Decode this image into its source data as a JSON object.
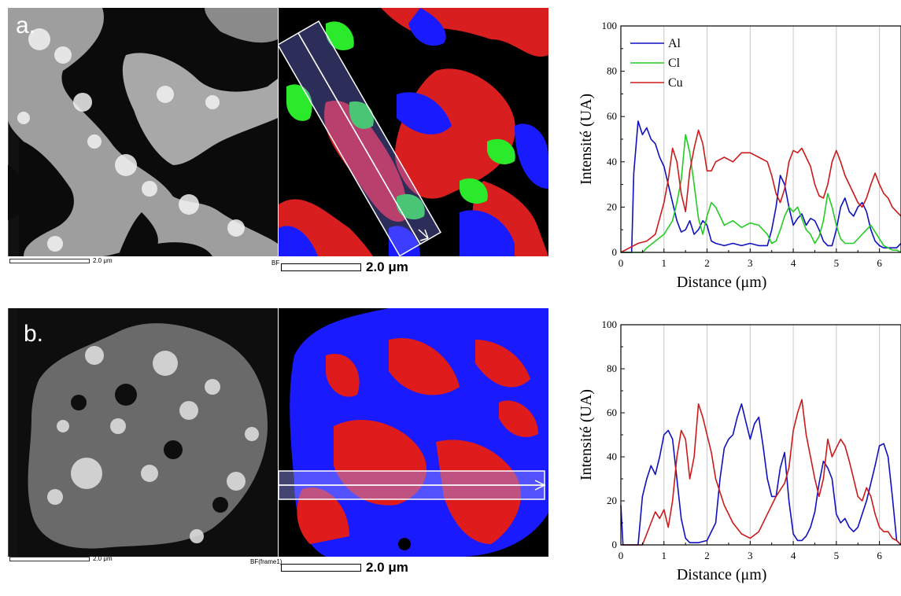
{
  "panels": [
    {
      "label": "a.",
      "left_scale_text": "2.0 μm",
      "left_mode": "BF",
      "map_scale_text": "2.0 μm"
    },
    {
      "label": "b.",
      "left_scale_text": "2.0 μm",
      "left_mode": "BF(frame1)",
      "map_scale_text": "2.0 μm"
    }
  ],
  "colors": {
    "Al": "#1010c0",
    "Cl": "#22cc22",
    "Cu": "#cc1a1a",
    "grid": "#c8c8c8"
  },
  "chart_data": [
    {
      "type": "line",
      "xlabel": "Distance (μm)",
      "ylabel": "Intensité (UA)",
      "xlim": [
        0,
        6.5
      ],
      "ylim": [
        0,
        100
      ],
      "xticks": [
        0,
        1,
        2,
        3,
        4,
        5,
        6
      ],
      "yticks": [
        0,
        20,
        40,
        60,
        80,
        100
      ],
      "grid": "vertical",
      "legend": "top-left",
      "series": [
        {
          "name": "Al",
          "color": "#1010c0",
          "x": [
            0,
            0.25,
            0.3,
            0.4,
            0.5,
            0.6,
            0.7,
            0.8,
            0.9,
            1.0,
            1.1,
            1.2,
            1.3,
            1.4,
            1.5,
            1.6,
            1.7,
            1.8,
            1.9,
            2.0,
            2.1,
            2.2,
            2.4,
            2.6,
            2.8,
            3.0,
            3.2,
            3.4,
            3.5,
            3.6,
            3.7,
            3.8,
            3.9,
            4.0,
            4.1,
            4.2,
            4.3,
            4.4,
            4.5,
            4.6,
            4.7,
            4.8,
            4.9,
            5.0,
            5.1,
            5.2,
            5.3,
            5.4,
            5.5,
            5.6,
            5.7,
            5.8,
            5.9,
            6.0,
            6.1,
            6.2,
            6.3,
            6.4,
            6.5
          ],
          "y": [
            0,
            0,
            35,
            58,
            52,
            55,
            50,
            48,
            42,
            38,
            30,
            22,
            14,
            9,
            10,
            14,
            8,
            10,
            14,
            12,
            5,
            4,
            3,
            4,
            3,
            4,
            3,
            3,
            10,
            20,
            34,
            30,
            20,
            12,
            15,
            17,
            12,
            15,
            14,
            10,
            5,
            3,
            3,
            10,
            20,
            24,
            18,
            16,
            20,
            22,
            18,
            10,
            5,
            3,
            2,
            2,
            2,
            2,
            4
          ]
        },
        {
          "name": "Cl",
          "color": "#22cc22",
          "x": [
            0,
            0.5,
            0.6,
            0.8,
            1.0,
            1.2,
            1.3,
            1.4,
            1.5,
            1.6,
            1.7,
            1.8,
            1.9,
            2.0,
            2.1,
            2.2,
            2.4,
            2.6,
            2.8,
            3.0,
            3.2,
            3.4,
            3.5,
            3.6,
            3.7,
            3.8,
            3.9,
            4.0,
            4.1,
            4.2,
            4.3,
            4.4,
            4.5,
            4.6,
            4.7,
            4.8,
            4.9,
            5.0,
            5.1,
            5.2,
            5.4,
            5.6,
            5.8,
            6.0,
            6.1,
            6.2,
            6.3,
            6.4,
            6.5
          ],
          "y": [
            0,
            0,
            2,
            5,
            8,
            14,
            22,
            32,
            52,
            44,
            30,
            15,
            8,
            16,
            22,
            20,
            12,
            14,
            11,
            13,
            12,
            8,
            4,
            5,
            10,
            16,
            20,
            18,
            20,
            15,
            10,
            8,
            4,
            7,
            14,
            26,
            20,
            12,
            6,
            4,
            4,
            8,
            12,
            6,
            3,
            2,
            1,
            1,
            0
          ]
        },
        {
          "name": "Cu",
          "color": "#cc1a1a",
          "x": [
            0,
            0.2,
            0.4,
            0.6,
            0.8,
            1.0,
            1.1,
            1.2,
            1.3,
            1.4,
            1.5,
            1.6,
            1.7,
            1.8,
            1.9,
            2.0,
            2.1,
            2.2,
            2.4,
            2.6,
            2.8,
            3.0,
            3.2,
            3.4,
            3.5,
            3.6,
            3.7,
            3.8,
            3.9,
            4.0,
            4.1,
            4.2,
            4.3,
            4.4,
            4.5,
            4.6,
            4.7,
            4.8,
            4.9,
            5.0,
            5.1,
            5.2,
            5.3,
            5.4,
            5.5,
            5.6,
            5.7,
            5.8,
            5.9,
            6.0,
            6.1,
            6.2,
            6.3,
            6.4,
            6.5
          ],
          "y": [
            0,
            2,
            4,
            5,
            8,
            22,
            32,
            46,
            40,
            26,
            18,
            36,
            46,
            54,
            48,
            36,
            36,
            40,
            42,
            40,
            44,
            44,
            42,
            40,
            34,
            26,
            22,
            28,
            40,
            45,
            44,
            46,
            42,
            38,
            30,
            25,
            24,
            30,
            40,
            45,
            40,
            34,
            30,
            26,
            22,
            20,
            24,
            30,
            35,
            30,
            26,
            24,
            20,
            18,
            16
          ]
        }
      ]
    },
    {
      "type": "line",
      "xlabel": "Distance (μm)",
      "ylabel": "Intensité (UA)",
      "xlim": [
        0,
        6.5
      ],
      "ylim": [
        0,
        100
      ],
      "xticks": [
        0,
        1,
        2,
        3,
        4,
        5,
        6
      ],
      "yticks": [
        0,
        20,
        40,
        60,
        80,
        100
      ],
      "grid": "vertical",
      "series": [
        {
          "color": "#1010c0",
          "x": [
            0,
            0.05,
            0.1,
            0.4,
            0.5,
            0.6,
            0.7,
            0.8,
            0.9,
            1.0,
            1.1,
            1.2,
            1.3,
            1.4,
            1.5,
            1.6,
            1.8,
            2.0,
            2.2,
            2.3,
            2.4,
            2.5,
            2.6,
            2.7,
            2.8,
            2.9,
            3.0,
            3.1,
            3.2,
            3.3,
            3.4,
            3.5,
            3.6,
            3.7,
            3.8,
            3.9,
            4.0,
            4.1,
            4.2,
            4.3,
            4.4,
            4.5,
            4.6,
            4.7,
            4.8,
            4.9,
            5.0,
            5.1,
            5.2,
            5.3,
            5.4,
            5.5,
            5.6,
            5.7,
            5.8,
            5.9,
            6.0,
            6.1,
            6.2,
            6.3,
            6.4,
            6.5
          ],
          "y": [
            18,
            0,
            0,
            0,
            22,
            30,
            36,
            32,
            40,
            50,
            52,
            48,
            30,
            12,
            3,
            1,
            1,
            2,
            10,
            30,
            44,
            48,
            50,
            58,
            64,
            56,
            48,
            55,
            58,
            45,
            30,
            22,
            22,
            35,
            42,
            20,
            5,
            2,
            2,
            4,
            8,
            15,
            28,
            38,
            35,
            30,
            14,
            10,
            12,
            8,
            6,
            8,
            14,
            20,
            28,
            36,
            45,
            46,
            40,
            22,
            2,
            0
          ]
        },
        {
          "color": "#cc1a1a",
          "x": [
            0,
            0.5,
            0.6,
            0.7,
            0.8,
            0.9,
            1.0,
            1.1,
            1.2,
            1.3,
            1.4,
            1.5,
            1.6,
            1.7,
            1.8,
            1.9,
            2.0,
            2.1,
            2.2,
            2.4,
            2.6,
            2.8,
            3.0,
            3.2,
            3.4,
            3.6,
            3.8,
            3.9,
            4.0,
            4.1,
            4.2,
            4.3,
            4.4,
            4.5,
            4.6,
            4.7,
            4.8,
            4.9,
            5.0,
            5.1,
            5.2,
            5.3,
            5.4,
            5.5,
            5.6,
            5.7,
            5.8,
            5.9,
            6.0,
            6.1,
            6.2,
            6.3,
            6.4,
            6.5
          ],
          "y": [
            0,
            0,
            5,
            10,
            15,
            12,
            16,
            8,
            20,
            40,
            52,
            48,
            30,
            40,
            64,
            58,
            50,
            42,
            30,
            18,
            10,
            5,
            3,
            6,
            14,
            22,
            28,
            35,
            52,
            60,
            66,
            50,
            40,
            30,
            22,
            30,
            48,
            40,
            44,
            48,
            45,
            38,
            30,
            22,
            20,
            26,
            22,
            14,
            8,
            6,
            6,
            3,
            2,
            0
          ]
        }
      ]
    }
  ]
}
